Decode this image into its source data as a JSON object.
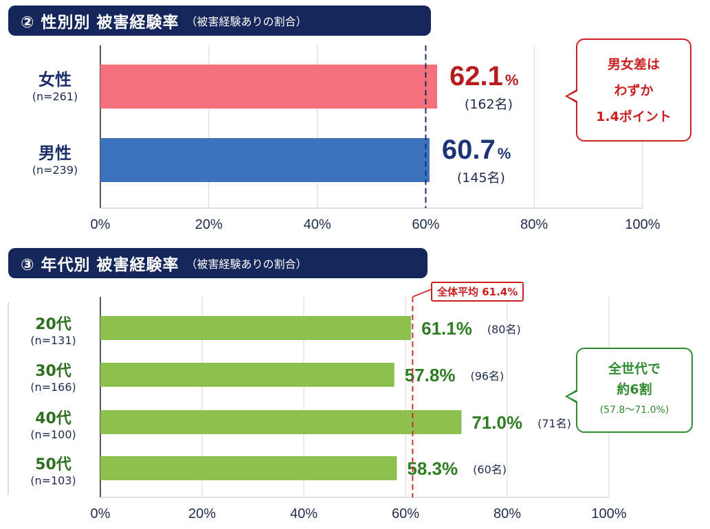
{
  "sections": {
    "gender": {
      "title": "② 性別別 被害経験率",
      "subtitle": "（被害経験ありの割合）"
    },
    "age": {
      "title": "③ 年代別 被害経験率",
      "subtitle": "（被害経験ありの割合）"
    }
  },
  "callouts": {
    "gender": {
      "lines": [
        "男女差は",
        "わずか",
        "1.4ポイント"
      ],
      "color": "#c91f1f"
    },
    "age": {
      "lines": [
        "全世代で",
        "約6割"
      ],
      "range": "(57.8〜71.0%)",
      "color": "#2e8a2e"
    }
  },
  "average_label": "全体平均 61.4%",
  "chart_data": [
    {
      "type": "bar",
      "orientation": "horizontal",
      "categories": [
        "女性",
        "男性"
      ],
      "n_labels": [
        "(n=261)",
        "(n=239)"
      ],
      "values": [
        62.1,
        60.7
      ],
      "value_labels": [
        "62.1",
        "60.7"
      ],
      "unit": "%",
      "counts": [
        "(162名)",
        "(145名)"
      ],
      "colors": [
        "#f4707a",
        "#3b73be"
      ],
      "label_colors": [
        "#b71c1c",
        "#1d3576"
      ],
      "reference_line": 60,
      "xlim": [
        0,
        100
      ],
      "xticks": [
        "0%",
        "20%",
        "40%",
        "60%",
        "80%",
        "100%"
      ],
      "grid": true
    },
    {
      "type": "bar",
      "orientation": "horizontal",
      "categories": [
        "20代",
        "30代",
        "40代",
        "50代"
      ],
      "n_labels": [
        "(n=131)",
        "(n=166)",
        "(n=100)",
        "(n=103)"
      ],
      "values": [
        61.1,
        57.8,
        71.0,
        58.3
      ],
      "value_labels": [
        "61.1%",
        "57.8%",
        "71.0%",
        "58.3%"
      ],
      "counts": [
        "(80名)",
        "(96名)",
        "(71名)",
        "(60名)"
      ],
      "color": "#8cc150",
      "label_color": "#2e7d22",
      "reference_line": 61.4,
      "xlim": [
        0,
        100
      ],
      "xticks": [
        "0%",
        "20%",
        "40%",
        "60%",
        "80%",
        "100%"
      ],
      "grid": true
    }
  ]
}
